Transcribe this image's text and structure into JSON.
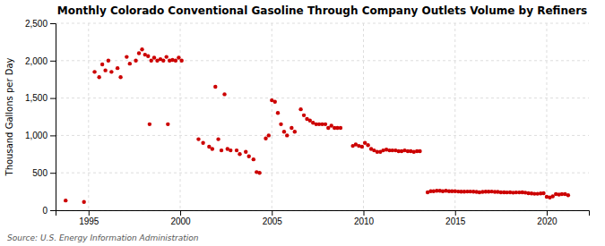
{
  "chart_data": {
    "type": "scatter",
    "title": "Monthly Colorado Conventional Gasoline Through Company Outlets Volume by Refiners",
    "y_label": "Thousand Gallons per Day",
    "annotations": [
      "Source: U.S. Energy Information Administration"
    ],
    "color": "#cc0000",
    "grid": true,
    "xlim": [
      1993.2,
      2022.3
    ],
    "xticks": [
      1995,
      2000,
      2005,
      2010,
      2015,
      2020
    ],
    "ylim": [
      0,
      2500
    ],
    "yticks": [
      0,
      500,
      {
        "value": 1000,
        "label": "1,000"
      },
      {
        "value": 1500,
        "label": "1,500"
      },
      {
        "value": 2000,
        "label": "2,000"
      },
      {
        "value": 2500,
        "label": "2,500"
      }
    ],
    "x": [
      1993.75,
      1994.75,
      1995.33,
      1995.58,
      1995.75,
      1995.92,
      1996.08,
      1996.25,
      1996.58,
      1996.75,
      1997.08,
      1997.25,
      1997.58,
      1997.75,
      1997.92,
      1998.08,
      1998.25,
      1998.42,
      1998.58,
      1998.75,
      1998.92,
      1999.08,
      1999.25,
      1999.42,
      1999.58,
      1999.75,
      1999.92,
      2000.08,
      1998.33,
      1999.33,
      2001.92,
      2002.42,
      2001.0,
      2001.25,
      2001.58,
      2001.75,
      2002.08,
      2002.25,
      2002.58,
      2002.75,
      2003.08,
      2003.25,
      2003.58,
      2003.75,
      2004.0,
      2004.17,
      2004.33,
      2004.67,
      2004.83,
      2005.0,
      2005.17,
      2005.33,
      2005.5,
      2005.67,
      2005.83,
      2006.08,
      2006.25,
      2006.58,
      2006.75,
      2006.92,
      2007.08,
      2007.25,
      2007.42,
      2007.58,
      2007.75,
      2007.92,
      2008.08,
      2008.25,
      2008.42,
      2008.58,
      2008.75,
      2009.42,
      2009.58,
      2009.75,
      2009.92,
      2010.08,
      2010.25,
      2010.42,
      2010.58,
      2010.75,
      2010.92,
      2011.08,
      2011.25,
      2011.42,
      2011.58,
      2011.75,
      2011.92,
      2012.08,
      2012.25,
      2012.42,
      2012.58,
      2012.75,
      2012.92,
      2013.08,
      2013.5,
      2013.67,
      2013.83,
      2014.0,
      2014.17,
      2014.33,
      2014.5,
      2014.67,
      2014.83,
      2015.0,
      2015.17,
      2015.33,
      2015.5,
      2015.67,
      2015.83,
      2016.0,
      2016.17,
      2016.33,
      2016.5,
      2016.67,
      2016.83,
      2017.0,
      2017.17,
      2017.33,
      2017.5,
      2017.67,
      2017.83,
      2018.0,
      2018.17,
      2018.33,
      2018.5,
      2018.67,
      2018.83,
      2019.0,
      2019.17,
      2019.33,
      2019.5,
      2019.67,
      2019.83,
      2020.0,
      2020.17,
      2020.33,
      2020.5,
      2020.67,
      2020.83,
      2021.0,
      2021.17
    ],
    "values": [
      130,
      110,
      1850,
      1780,
      1950,
      1870,
      2000,
      1850,
      1900,
      1780,
      2050,
      1960,
      2000,
      2100,
      2150,
      2080,
      2060,
      2000,
      2040,
      2000,
      2020,
      2000,
      2050,
      2000,
      2010,
      2000,
      2040,
      2000,
      1150,
      1150,
      1650,
      1550,
      950,
      900,
      850,
      820,
      950,
      800,
      820,
      800,
      800,
      750,
      780,
      720,
      680,
      510,
      500,
      960,
      1000,
      1470,
      1450,
      1300,
      1150,
      1050,
      1000,
      1100,
      1050,
      1350,
      1270,
      1220,
      1200,
      1170,
      1150,
      1150,
      1150,
      1150,
      1100,
      1130,
      1100,
      1100,
      1100,
      860,
      880,
      860,
      850,
      900,
      870,
      820,
      800,
      780,
      780,
      800,
      810,
      800,
      800,
      800,
      790,
      790,
      800,
      790,
      790,
      780,
      790,
      790,
      240,
      255,
      255,
      260,
      260,
      255,
      260,
      255,
      255,
      255,
      250,
      248,
      248,
      250,
      250,
      248,
      245,
      240,
      245,
      248,
      248,
      250,
      245,
      245,
      240,
      240,
      238,
      240,
      235,
      238,
      238,
      240,
      235,
      228,
      225,
      220,
      220,
      225,
      228,
      180,
      170,
      185,
      215,
      210,
      215,
      215,
      200
    ]
  }
}
